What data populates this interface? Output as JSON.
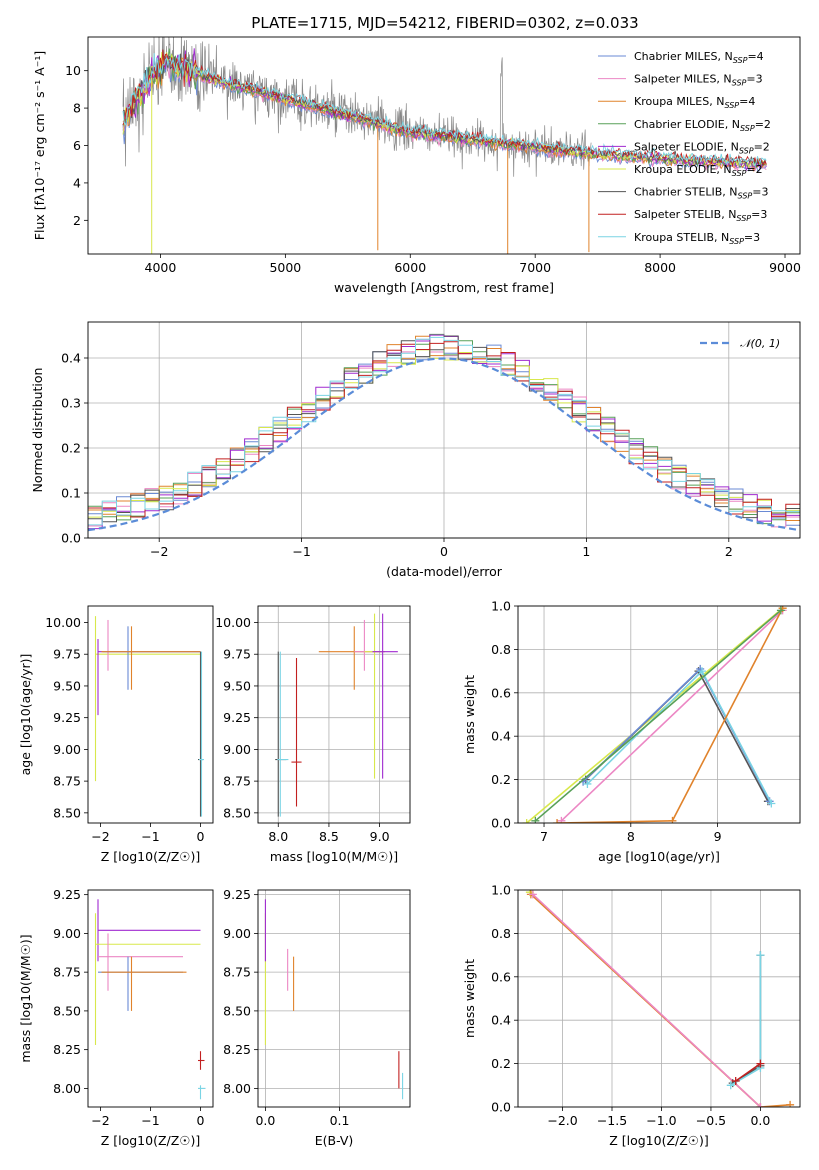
{
  "figure": {
    "title": "PLATE=1715, MJD=54212, FIBERID=0302, z=0.033"
  },
  "colors": {
    "chabrier_miles": "#6a8ad4",
    "salpeter_miles": "#ec87c4",
    "kroupa_miles": "#e0832c",
    "chabrier_elodie": "#58a058",
    "salpeter_elodie": "#a02ad0",
    "kroupa_elodie": "#d8e84c",
    "chabrier_stelib": "#555555",
    "salpeter_stelib": "#c22020",
    "kroupa_stelib": "#7ad4e4",
    "data": "#888888",
    "normal": "#5b8cd8"
  },
  "chart_data": [
    {
      "id": "spectrum",
      "type": "line",
      "title": "PLATE=1715, MJD=54212, FIBERID=0302, z=0.033",
      "xlabel": "wavelength [Angstrom, rest frame]",
      "ylabel": "Flux [fλ10⁻¹⁷ erg cm⁻² s⁻¹ A⁻¹]",
      "xlim": [
        3420,
        9120
      ],
      "ylim": [
        0.2,
        11.8
      ],
      "xticks": [
        4000,
        5000,
        6000,
        7000,
        8000,
        9000
      ],
      "yticks": [
        2,
        4,
        6,
        8,
        10
      ],
      "grid": false,
      "legend_position": "top-right",
      "series": [
        {
          "name": "Chabrier MILES, N_SSP=4",
          "key": "chabrier_miles"
        },
        {
          "name": "Salpeter MILES, N_SSP=3",
          "key": "salpeter_miles"
        },
        {
          "name": "Kroupa MILES, N_SSP=4",
          "key": "kroupa_miles"
        },
        {
          "name": "Chabrier ELODIE, N_SSP=2",
          "key": "chabrier_elodie"
        },
        {
          "name": "Salpeter ELODIE, N_SSP=2",
          "key": "salpeter_elodie"
        },
        {
          "name": "Kroupa ELODIE, N_SSP=2",
          "key": "kroupa_elodie"
        },
        {
          "name": "Chabrier STELIB, N_SSP=3",
          "key": "chabrier_stelib"
        },
        {
          "name": "Salpeter STELIB, N_SSP=3",
          "key": "salpeter_stelib"
        },
        {
          "name": "Kroupa STELIB, N_SSP=3",
          "key": "kroupa_stelib"
        }
      ],
      "model_continuum": {
        "x": [
          3700,
          3800,
          3950,
          4050,
          4300,
          4600,
          5000,
          5500,
          6000,
          6500,
          7000,
          7400,
          7800,
          8200,
          8800
        ],
        "y": [
          7.0,
          8.5,
          9.8,
          10.5,
          9.8,
          9.2,
          8.5,
          7.6,
          6.7,
          6.3,
          5.9,
          5.6,
          5.4,
          5.2,
          5.0
        ]
      }
    },
    {
      "id": "residuals",
      "type": "line",
      "xlabel": "(data-model)/error",
      "ylabel": "Normed distribution",
      "xlim": [
        -2.5,
        2.5
      ],
      "ylim": [
        0,
        0.48
      ],
      "xticks": [
        -2,
        -1,
        0,
        1,
        2
      ],
      "yticks": [
        0.0,
        0.1,
        0.2,
        0.3,
        0.4
      ],
      "grid": true,
      "legend_position": "top-right",
      "reference": {
        "name": "N(0,1)",
        "mu": 0,
        "sigma": 1
      }
    },
    {
      "id": "age_vs_Z",
      "type": "scatter",
      "xlabel": "Z [log10(Z/Z☉)]",
      "ylabel": "age  [log10(age/yr)]",
      "xlim": [
        -2.25,
        0.25
      ],
      "ylim": [
        8.42,
        10.13
      ],
      "xticks": [
        -2,
        -1,
        0
      ],
      "yticks": [
        8.5,
        8.75,
        9.0,
        9.25,
        9.5,
        9.75,
        10.0
      ],
      "grid": false
    },
    {
      "id": "age_vs_mass",
      "type": "scatter",
      "xlabel": "mass [log10(M/M☉)]",
      "xlim": [
        7.8,
        9.3
      ],
      "ylim": [
        8.42,
        10.13
      ],
      "xticks": [
        8.0,
        8.5,
        9.0
      ],
      "yticks": [
        8.5,
        8.75,
        9.0,
        9.25,
        9.5,
        9.75,
        10.0
      ],
      "grid": true
    },
    {
      "id": "mw_vs_age",
      "type": "line",
      "xlabel": "age  [log10(age/yr)]",
      "ylabel": "mass weight",
      "xlim": [
        6.7,
        9.95
      ],
      "ylim": [
        0,
        1.0
      ],
      "xticks": [
        7,
        8,
        9
      ],
      "yticks": [
        0.0,
        0.2,
        0.4,
        0.6,
        0.8,
        1.0
      ],
      "grid": true,
      "series": [
        {
          "key": "kroupa_elodie",
          "x": [
            6.8,
            9.75
          ],
          "y": [
            0.0,
            0.99
          ]
        },
        {
          "key": "salpeter_miles",
          "x": [
            7.2,
            9.75
          ],
          "y": [
            0.01,
            0.98
          ]
        },
        {
          "key": "chabrier_stelib",
          "x": [
            7.48,
            8.78,
            9.58
          ],
          "y": [
            0.2,
            0.7,
            0.1
          ]
        },
        {
          "key": "chabrier_miles",
          "x": [
            7.45,
            8.8,
            9.6
          ],
          "y": [
            0.19,
            0.71,
            0.1
          ]
        },
        {
          "key": "kroupa_stelib",
          "x": [
            7.5,
            8.82,
            9.62
          ],
          "y": [
            0.18,
            0.7,
            0.09
          ]
        },
        {
          "key": "kroupa_miles",
          "x": [
            7.15,
            8.48,
            9.75
          ],
          "y": [
            0.0,
            0.01,
            0.99
          ]
        },
        {
          "key": "chabrier_elodie",
          "x": [
            6.9,
            9.73
          ],
          "y": [
            0.01,
            0.98
          ]
        }
      ]
    },
    {
      "id": "mass_vs_Z",
      "type": "scatter",
      "xlabel": "Z [log10(Z/Z☉)]",
      "ylabel": "mass [log10(M/M☉)]",
      "xlim": [
        -2.25,
        0.25
      ],
      "ylim": [
        7.88,
        9.28
      ],
      "xticks": [
        -2,
        -1,
        0
      ],
      "yticks": [
        8.0,
        8.25,
        8.5,
        8.75,
        9.0,
        9.25
      ],
      "grid": false
    },
    {
      "id": "mass_vs_ebv",
      "type": "scatter",
      "xlabel": "E(B-V)",
      "xlim": [
        -0.01,
        0.195
      ],
      "ylim": [
        7.88,
        9.28
      ],
      "xticks": [
        0.0,
        0.1
      ],
      "yticks": [
        8.0,
        8.25,
        8.5,
        8.75,
        9.0,
        9.25
      ],
      "grid": true
    },
    {
      "id": "mw_vs_Z",
      "type": "line",
      "xlabel": "Z [log10(Z/Z☉)]",
      "ylabel": "mass weight",
      "xlim": [
        -2.45,
        0.4
      ],
      "ylim": [
        0,
        1.0
      ],
      "xticks": [
        -2.0,
        -1.5,
        -1.0,
        -0.5,
        0.0
      ],
      "yticks": [
        0.0,
        0.2,
        0.4,
        0.6,
        0.8,
        1.0
      ],
      "grid": true,
      "series": [
        {
          "key": "kroupa_elodie",
          "x": [
            -2.33,
            0.0
          ],
          "y": [
            0.99,
            0.0
          ]
        },
        {
          "key": "kroupa_miles",
          "x": [
            -2.32,
            0.0,
            0.3
          ],
          "y": [
            0.98,
            0.0,
            0.01
          ]
        },
        {
          "key": "salpeter_miles",
          "x": [
            -2.3,
            0.0
          ],
          "y": [
            0.98,
            0.0
          ]
        },
        {
          "key": "chabrier_stelib",
          "x": [
            -0.28,
            0.0,
            0.0
          ],
          "y": [
            0.11,
            0.19,
            0.7
          ]
        },
        {
          "key": "kroupa_stelib",
          "x": [
            -0.3,
            0.0,
            0.0
          ],
          "y": [
            0.1,
            0.18,
            0.7
          ]
        },
        {
          "key": "salpeter_stelib",
          "x": [
            -0.25,
            0.0
          ],
          "y": [
            0.12,
            0.2
          ]
        }
      ]
    }
  ],
  "ssp_errorbars": {
    "age_Z": [
      {
        "key": "kroupa_elodie",
        "x": -2.1,
        "y": 9.75,
        "xerr": [
          0.0,
          2.1
        ],
        "yerr": [
          1.0,
          0.3
        ]
      },
      {
        "key": "salpeter_elodie",
        "x": -2.05,
        "y": 9.77,
        "xerr": [
          0.0,
          2.05
        ],
        "yerr": [
          0.5,
          0.1
        ]
      },
      {
        "key": "salpeter_miles",
        "x": -1.85,
        "y": 9.77,
        "xerr": [
          0.1,
          1.7
        ],
        "yerr": [
          0.15,
          0.25
        ]
      },
      {
        "key": "chabrier_miles",
        "x": -1.45,
        "y": 9.77,
        "xerr": [
          0.5,
          1.45
        ],
        "yerr": [
          0.3,
          0.2
        ]
      },
      {
        "key": "kroupa_miles",
        "x": -1.38,
        "y": 9.77,
        "xerr": [
          0.6,
          1.38
        ],
        "yerr": [
          0.3,
          0.2
        ]
      },
      {
        "key": "chabrier_stelib",
        "x": 0.0,
        "y": 8.92,
        "xerr": [
          0.05,
          0.05
        ],
        "yerr": [
          0.45,
          0.85
        ]
      },
      {
        "key": "kroupa_stelib",
        "x": 0.02,
        "y": 8.92,
        "xerr": [
          0.05,
          0.05
        ],
        "yerr": [
          0.45,
          0.85
        ]
      }
    ],
    "age_mass": [
      {
        "key": "chabrier_stelib",
        "x": 8.0,
        "y": 8.92,
        "xerr": [
          0.03,
          0.08
        ],
        "yerr": [
          0.45,
          0.85
        ]
      },
      {
        "key": "kroupa_stelib",
        "x": 8.02,
        "y": 8.92,
        "xerr": [
          0.03,
          0.08
        ],
        "yerr": [
          0.45,
          0.85
        ]
      },
      {
        "key": "salpeter_stelib",
        "x": 8.18,
        "y": 8.9,
        "xerr": [
          0.05,
          0.05
        ],
        "yerr": [
          0.35,
          0.82
        ]
      },
      {
        "key": "kroupa_miles",
        "x": 8.75,
        "y": 9.77,
        "xerr": [
          0.35,
          0.3
        ],
        "yerr": [
          0.3,
          0.2
        ]
      },
      {
        "key": "salpeter_miles",
        "x": 8.85,
        "y": 9.77,
        "xerr": [
          0.1,
          0.2
        ],
        "yerr": [
          0.15,
          0.25
        ]
      },
      {
        "key": "kroupa_elodie",
        "x": 8.95,
        "y": 9.77,
        "xerr": [
          0.1,
          0.1
        ],
        "yerr": [
          1.0,
          0.3
        ]
      },
      {
        "key": "salpeter_elodie",
        "x": 9.03,
        "y": 9.77,
        "xerr": [
          0.1,
          0.15
        ],
        "yerr": [
          1.0,
          0.3
        ]
      }
    ],
    "mass_Z": [
      {
        "key": "salpeter_elodie",
        "x": -2.05,
        "y": 9.02,
        "xerr": [
          0.0,
          2.05
        ],
        "yerr": [
          0.2,
          0.2
        ]
      },
      {
        "key": "kroupa_elodie",
        "x": -2.1,
        "y": 8.93,
        "xerr": [
          0.0,
          2.1
        ],
        "yerr": [
          0.65,
          0.2
        ]
      },
      {
        "key": "salpeter_miles",
        "x": -1.85,
        "y": 8.85,
        "xerr": [
          0.2,
          1.5
        ],
        "yerr": [
          0.22,
          0.15
        ]
      },
      {
        "key": "chabrier_miles",
        "x": -1.45,
        "y": 8.75,
        "xerr": [
          0.6,
          1.1
        ],
        "yerr": [
          0.25,
          0.1
        ]
      },
      {
        "key": "kroupa_miles",
        "x": -1.38,
        "y": 8.75,
        "xerr": [
          0.6,
          1.1
        ],
        "yerr": [
          0.25,
          0.1
        ]
      },
      {
        "key": "salpeter_stelib",
        "x": 0.0,
        "y": 8.18,
        "xerr": [
          0.05,
          0.08
        ],
        "yerr": [
          0.06,
          0.06
        ]
      },
      {
        "key": "kroupa_stelib",
        "x": 0.0,
        "y": 8.0,
        "xerr": [
          0.05,
          0.1
        ],
        "yerr": [
          0.07,
          0.02
        ]
      }
    ],
    "mass_ebv": [
      {
        "key": "kroupa_elodie",
        "x": 0.0,
        "y": 8.93,
        "xerr": [
          0.0,
          0.0
        ],
        "yerr": [
          0.65,
          0.2
        ]
      },
      {
        "key": "salpeter_elodie",
        "x": 0.0,
        "y": 9.02,
        "xerr": [
          0.0,
          0.0
        ],
        "yerr": [
          0.2,
          0.2
        ]
      },
      {
        "key": "salpeter_miles",
        "x": 0.03,
        "y": 8.78,
        "xerr": [
          0.0,
          0.0
        ],
        "yerr": [
          0.15,
          0.12
        ]
      },
      {
        "key": "kroupa_miles",
        "x": 0.038,
        "y": 8.75,
        "xerr": [
          0.0,
          0.0
        ],
        "yerr": [
          0.25,
          0.1
        ]
      },
      {
        "key": "salpeter_stelib",
        "x": 0.18,
        "y": 8.12,
        "xerr": [
          0.0,
          0.0
        ],
        "yerr": [
          0.12,
          0.12
        ]
      },
      {
        "key": "kroupa_stelib",
        "x": 0.185,
        "y": 8.0,
        "xerr": [
          0.0,
          0.0
        ],
        "yerr": [
          0.07,
          0.1
        ]
      }
    ]
  }
}
